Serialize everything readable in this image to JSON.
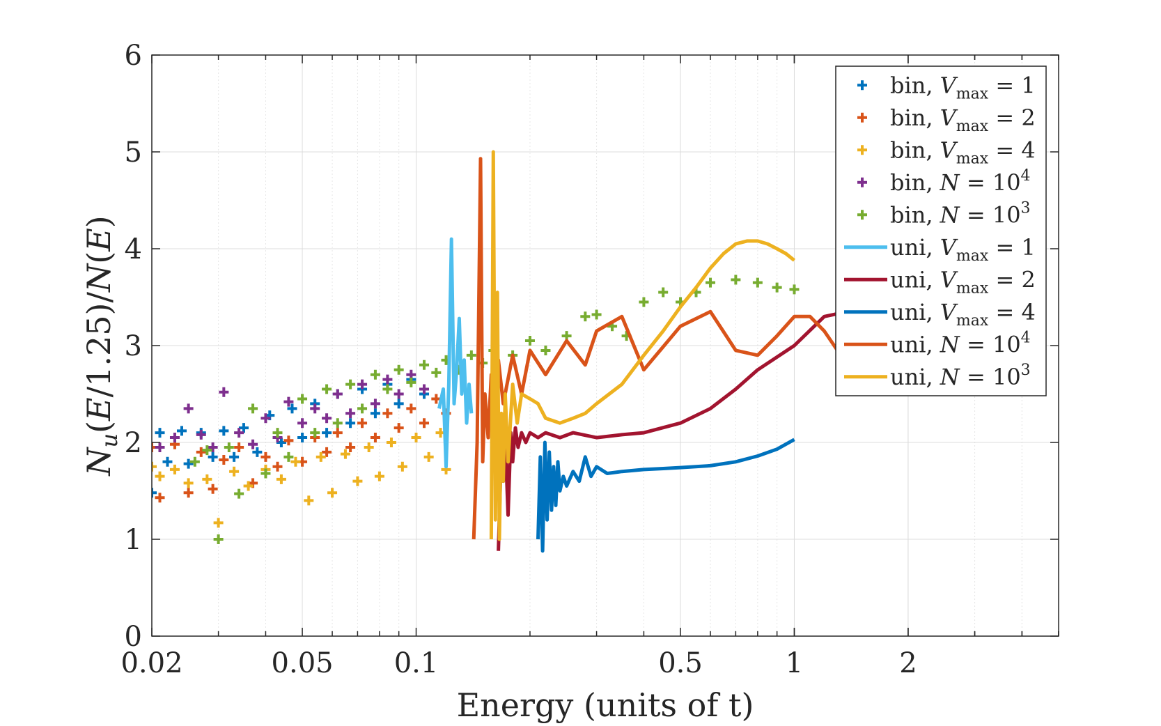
{
  "chart_data": {
    "type": "scatter",
    "xlabel": "Energy (units of t)",
    "ylabel": "N_u(E/1.25)/N(E)",
    "xscale": "log",
    "xlim": [
      0.02,
      5
    ],
    "ylim": [
      0,
      6
    ],
    "x_ticks": [
      0.02,
      0.05,
      0.1,
      0.5,
      1,
      2
    ],
    "x_tick_labels": [
      "0.02",
      "0.05",
      "0.1",
      "0.5",
      "1",
      "2"
    ],
    "y_ticks": [
      0,
      1,
      2,
      3,
      4,
      5,
      6
    ],
    "y_tick_labels": [
      "0",
      "1",
      "2",
      "3",
      "4",
      "5",
      "6"
    ],
    "grid": true,
    "legend_position": "top-right",
    "legend": [
      {
        "text": "bin, V_max = 1",
        "prefix": "bin, ",
        "var": "V",
        "sub": "max",
        "rel": " = 1",
        "sup": "",
        "marker": "plus",
        "color": "#0072BD"
      },
      {
        "text": "bin, V_max = 2",
        "prefix": "bin, ",
        "var": "V",
        "sub": "max",
        "rel": " = 2",
        "sup": "",
        "marker": "plus",
        "color": "#D95319"
      },
      {
        "text": "bin, V_max = 4",
        "prefix": "bin, ",
        "var": "V",
        "sub": "max",
        "rel": " = 4",
        "sup": "",
        "marker": "plus",
        "color": "#EDB120"
      },
      {
        "text": "bin, N = 10^4",
        "prefix": "bin, ",
        "var": "N",
        "sub": "",
        "rel": " = 10",
        "sup": "4",
        "marker": "plus",
        "color": "#7E2F8E"
      },
      {
        "text": "bin, N = 10^3",
        "prefix": "bin, ",
        "var": "N",
        "sub": "",
        "rel": " = 10",
        "sup": "3",
        "marker": "plus",
        "color": "#77AC30"
      },
      {
        "text": "uni, V_max = 1",
        "prefix": "uni, ",
        "var": "V",
        "sub": "max",
        "rel": " = 1",
        "sup": "",
        "marker": "line",
        "color": "#4DBEEE"
      },
      {
        "text": "uni, V_max = 2",
        "prefix": "uni, ",
        "var": "V",
        "sub": "max",
        "rel": " = 2",
        "sup": "",
        "marker": "line",
        "color": "#A2142F"
      },
      {
        "text": "uni, V_max = 4",
        "prefix": "uni, ",
        "var": "V",
        "sub": "max",
        "rel": " = 4",
        "sup": "",
        "marker": "line",
        "color": "#0072BD"
      },
      {
        "text": "uni, N = 10^4",
        "prefix": "uni, ",
        "var": "N",
        "sub": "",
        "rel": " = 10",
        "sup": "4",
        "marker": "line",
        "color": "#D95319"
      },
      {
        "text": "uni, N = 10^3",
        "prefix": "uni, ",
        "var": "N",
        "sub": "",
        "rel": " = 10",
        "sup": "3",
        "marker": "line",
        "color": "#EDB120"
      }
    ],
    "series": [
      {
        "name": "bin, V_max = 1",
        "kind": "scatter",
        "color": "#0072BD",
        "x": [
          0.02,
          0.021,
          0.022,
          0.024,
          0.025,
          0.027,
          0.029,
          0.031,
          0.033,
          0.035,
          0.038,
          0.041,
          0.044,
          0.047,
          0.05,
          0.054,
          0.058,
          0.062,
          0.067,
          0.072,
          0.078,
          0.084,
          0.09,
          0.097,
          0.105
        ],
        "y": [
          1.48,
          2.1,
          1.8,
          2.12,
          1.78,
          2.1,
          1.85,
          2.12,
          1.85,
          2.15,
          1.9,
          2.28,
          2.0,
          2.35,
          2.05,
          2.4,
          2.1,
          2.5,
          2.2,
          2.55,
          2.3,
          2.6,
          2.4,
          2.65,
          2.5
        ]
      },
      {
        "name": "bin, V_max = 2",
        "kind": "scatter",
        "color": "#D95319",
        "x": [
          0.02,
          0.021,
          0.023,
          0.025,
          0.027,
          0.029,
          0.031,
          0.034,
          0.037,
          0.04,
          0.043,
          0.046,
          0.05,
          0.054,
          0.058,
          0.062,
          0.067,
          0.072,
          0.078,
          0.084,
          0.09,
          0.097,
          0.105,
          0.113,
          0.12
        ],
        "y": [
          1.95,
          1.43,
          1.98,
          1.48,
          1.9,
          1.52,
          1.82,
          1.95,
          1.58,
          1.85,
          1.75,
          2.02,
          1.8,
          2.05,
          1.9,
          2.1,
          1.95,
          2.2,
          2.05,
          2.3,
          2.15,
          2.35,
          2.2,
          2.45,
          2.3
        ]
      },
      {
        "name": "bin, V_max = 4",
        "kind": "scatter",
        "color": "#EDB120",
        "x": [
          0.02,
          0.021,
          0.023,
          0.025,
          0.028,
          0.03,
          0.033,
          0.036,
          0.04,
          0.044,
          0.048,
          0.052,
          0.056,
          0.06,
          0.065,
          0.07,
          0.075,
          0.08,
          0.086,
          0.092,
          0.1,
          0.108,
          0.116,
          0.12
        ],
        "y": [
          1.75,
          1.65,
          1.72,
          1.58,
          1.62,
          1.17,
          1.7,
          1.55,
          1.72,
          1.62,
          1.8,
          1.4,
          1.85,
          1.48,
          1.88,
          1.6,
          1.95,
          1.65,
          2.0,
          1.75,
          2.05,
          1.85,
          2.1,
          1.72
        ]
      },
      {
        "name": "bin, N = 10^4",
        "kind": "scatter",
        "color": "#7E2F8E",
        "x": [
          0.021,
          0.023,
          0.025,
          0.027,
          0.029,
          0.031,
          0.034,
          0.037,
          0.04,
          0.043,
          0.046,
          0.05,
          0.054,
          0.058,
          0.062,
          0.067,
          0.072,
          0.078,
          0.084,
          0.09,
          0.097,
          0.105
        ],
        "y": [
          1.95,
          2.05,
          2.35,
          2.08,
          1.95,
          2.52,
          2.1,
          1.98,
          2.25,
          2.05,
          2.42,
          2.2,
          2.35,
          2.25,
          2.5,
          2.3,
          2.6,
          2.4,
          2.65,
          2.5,
          2.7,
          2.55
        ]
      },
      {
        "name": "bin, N = 10^3",
        "kind": "scatter",
        "color": "#77AC30",
        "x": [
          0.026,
          0.028,
          0.03,
          0.032,
          0.034,
          0.037,
          0.04,
          0.043,
          0.046,
          0.05,
          0.054,
          0.058,
          0.062,
          0.067,
          0.072,
          0.078,
          0.084,
          0.09,
          0.097,
          0.105,
          0.113,
          0.12,
          0.13,
          0.14,
          0.15,
          0.16,
          0.18,
          0.2,
          0.22,
          0.25,
          0.28,
          0.3,
          0.33,
          0.36,
          0.4,
          0.45,
          0.5,
          0.55,
          0.6,
          0.7,
          0.8,
          0.9,
          1.0
        ],
        "y": [
          1.8,
          1.92,
          1.0,
          1.95,
          1.47,
          2.35,
          1.68,
          2.1,
          1.85,
          2.45,
          2.1,
          2.55,
          2.2,
          2.6,
          2.35,
          2.7,
          2.55,
          2.75,
          2.62,
          2.8,
          2.72,
          2.85,
          2.75,
          2.9,
          2.82,
          2.95,
          2.9,
          3.05,
          2.95,
          3.1,
          3.3,
          3.32,
          3.2,
          3.1,
          3.45,
          3.55,
          3.45,
          3.55,
          3.65,
          3.68,
          3.65,
          3.6,
          3.58
        ]
      },
      {
        "name": "uni, V_max = 1",
        "kind": "line",
        "color": "#4DBEEE",
        "x": [
          0.115,
          0.118,
          0.12,
          0.122,
          0.124,
          0.126,
          0.128,
          0.13,
          0.132,
          0.134,
          0.136,
          0.138,
          0.14
        ],
        "y": [
          2.35,
          2.55,
          1.75,
          2.6,
          4.1,
          2.4,
          2.75,
          3.28,
          2.5,
          2.85,
          2.2,
          2.6,
          2.3
        ]
      },
      {
        "name": "uni, V_max = 2",
        "kind": "line",
        "color": "#A2142F",
        "x": [
          0.165,
          0.168,
          0.17,
          0.172,
          0.175,
          0.178,
          0.18,
          0.183,
          0.186,
          0.19,
          0.195,
          0.2,
          0.21,
          0.22,
          0.24,
          0.26,
          0.3,
          0.35,
          0.4,
          0.5,
          0.6,
          0.7,
          0.8,
          1.0,
          1.2,
          1.5,
          1.8,
          2.0
        ],
        "y": [
          0.88,
          1.95,
          1.6,
          2.05,
          1.25,
          2.1,
          1.8,
          2.15,
          1.95,
          2.1,
          2.0,
          2.1,
          2.05,
          2.1,
          2.05,
          2.1,
          2.05,
          2.08,
          2.1,
          2.2,
          2.35,
          2.55,
          2.75,
          3.0,
          3.3,
          3.38,
          3.2,
          2.97
        ]
      },
      {
        "name": "uni, V_max = 4",
        "kind": "line",
        "color": "#0072BD",
        "x": [
          0.21,
          0.213,
          0.216,
          0.219,
          0.222,
          0.225,
          0.228,
          0.231,
          0.234,
          0.237,
          0.24,
          0.245,
          0.25,
          0.26,
          0.27,
          0.28,
          0.29,
          0.3,
          0.32,
          0.35,
          0.4,
          0.45,
          0.5,
          0.6,
          0.7,
          0.8,
          0.9,
          1.0
        ],
        "y": [
          1.0,
          1.85,
          0.88,
          2.0,
          1.2,
          1.9,
          1.3,
          1.75,
          1.35,
          1.8,
          1.5,
          1.65,
          1.55,
          1.7,
          1.6,
          1.85,
          1.65,
          1.75,
          1.68,
          1.7,
          1.72,
          1.73,
          1.74,
          1.76,
          1.8,
          1.86,
          1.93,
          2.03
        ]
      },
      {
        "name": "uni, N = 10^4",
        "kind": "line",
        "color": "#D95319",
        "x": [
          0.142,
          0.145,
          0.148,
          0.15,
          0.152,
          0.155,
          0.158,
          0.16,
          0.165,
          0.17,
          0.18,
          0.19,
          0.2,
          0.22,
          0.25,
          0.28,
          0.3,
          0.35,
          0.4,
          0.5,
          0.6,
          0.7,
          0.8,
          0.9,
          1.0,
          1.1,
          1.2,
          1.3,
          1.4,
          1.5,
          1.6,
          1.8,
          2.0
        ],
        "y": [
          1.0,
          2.0,
          4.93,
          1.8,
          2.5,
          2.05,
          2.7,
          2.2,
          2.85,
          2.4,
          2.9,
          2.5,
          2.95,
          2.7,
          3.05,
          2.8,
          3.15,
          3.3,
          2.75,
          3.2,
          3.35,
          2.95,
          2.9,
          3.1,
          3.3,
          3.3,
          3.15,
          2.95,
          2.85,
          2.85,
          2.75,
          2.75,
          2.77
        ]
      },
      {
        "name": "uni, N = 10^3",
        "kind": "line",
        "color": "#EDB120",
        "x": [
          0.158,
          0.16,
          0.162,
          0.164,
          0.166,
          0.168,
          0.17,
          0.172,
          0.175,
          0.18,
          0.185,
          0.19,
          0.2,
          0.21,
          0.22,
          0.24,
          0.26,
          0.28,
          0.3,
          0.35,
          0.4,
          0.45,
          0.5,
          0.55,
          0.6,
          0.65,
          0.7,
          0.75,
          0.8,
          0.85,
          0.9,
          0.95,
          1.0
        ],
        "y": [
          1.0,
          5.0,
          1.2,
          3.55,
          1.0,
          2.3,
          1.6,
          2.5,
          1.8,
          2.6,
          2.2,
          2.5,
          2.45,
          2.4,
          2.25,
          2.2,
          2.25,
          2.3,
          2.4,
          2.6,
          2.9,
          3.15,
          3.4,
          3.6,
          3.8,
          3.95,
          4.05,
          4.08,
          4.08,
          4.05,
          4.0,
          3.95,
          3.88
        ]
      }
    ]
  }
}
